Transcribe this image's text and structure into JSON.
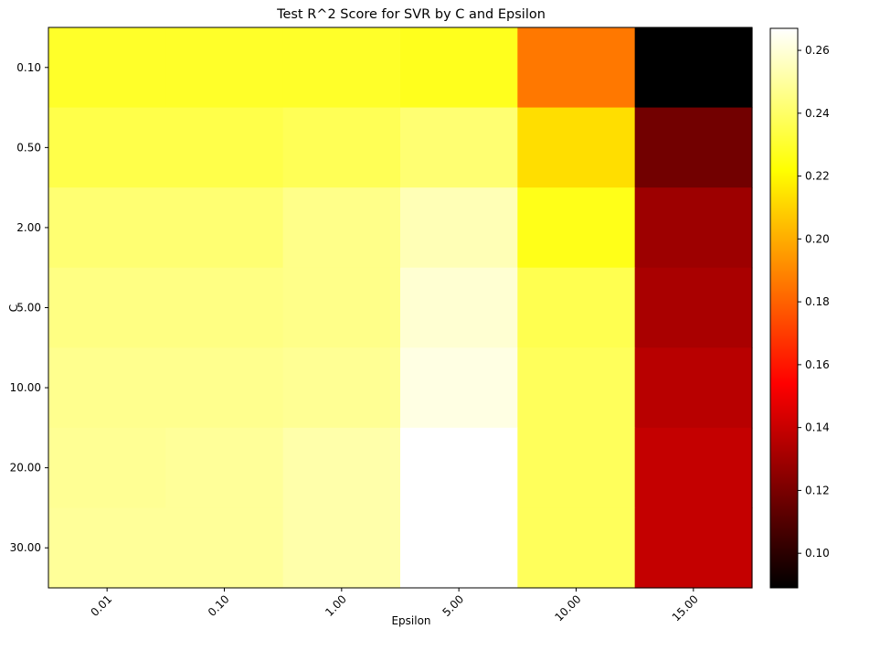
{
  "chart_data": {
    "type": "heatmap",
    "title": "Test R^2 Score for SVR by C and Epsilon",
    "xlabel": "Epsilon",
    "ylabel": "C",
    "x_categories": [
      "0.01",
      "0.10",
      "1.00",
      "5.00",
      "10.00",
      "15.00"
    ],
    "y_categories": [
      "0.10",
      "0.50",
      "2.00",
      "5.00",
      "10.00",
      "20.00",
      "30.00"
    ],
    "values": [
      [
        0.229,
        0.229,
        0.229,
        0.227,
        0.186,
        0.089
      ],
      [
        0.235,
        0.235,
        0.237,
        0.242,
        0.213,
        0.118
      ],
      [
        0.242,
        0.242,
        0.246,
        0.254,
        0.226,
        0.129
      ],
      [
        0.245,
        0.245,
        0.246,
        0.259,
        0.236,
        0.132
      ],
      [
        0.247,
        0.247,
        0.248,
        0.262,
        0.238,
        0.136
      ],
      [
        0.248,
        0.249,
        0.252,
        0.267,
        0.238,
        0.139
      ],
      [
        0.249,
        0.249,
        0.252,
        0.267,
        0.238,
        0.139
      ]
    ],
    "colormap": "hot",
    "vmin": 0.089,
    "vmax": 0.267,
    "colorbar_ticks": [
      "0.10",
      "0.12",
      "0.14",
      "0.16",
      "0.18",
      "0.20",
      "0.22",
      "0.24",
      "0.26"
    ],
    "grid": false,
    "legend": "colorbar-right"
  }
}
